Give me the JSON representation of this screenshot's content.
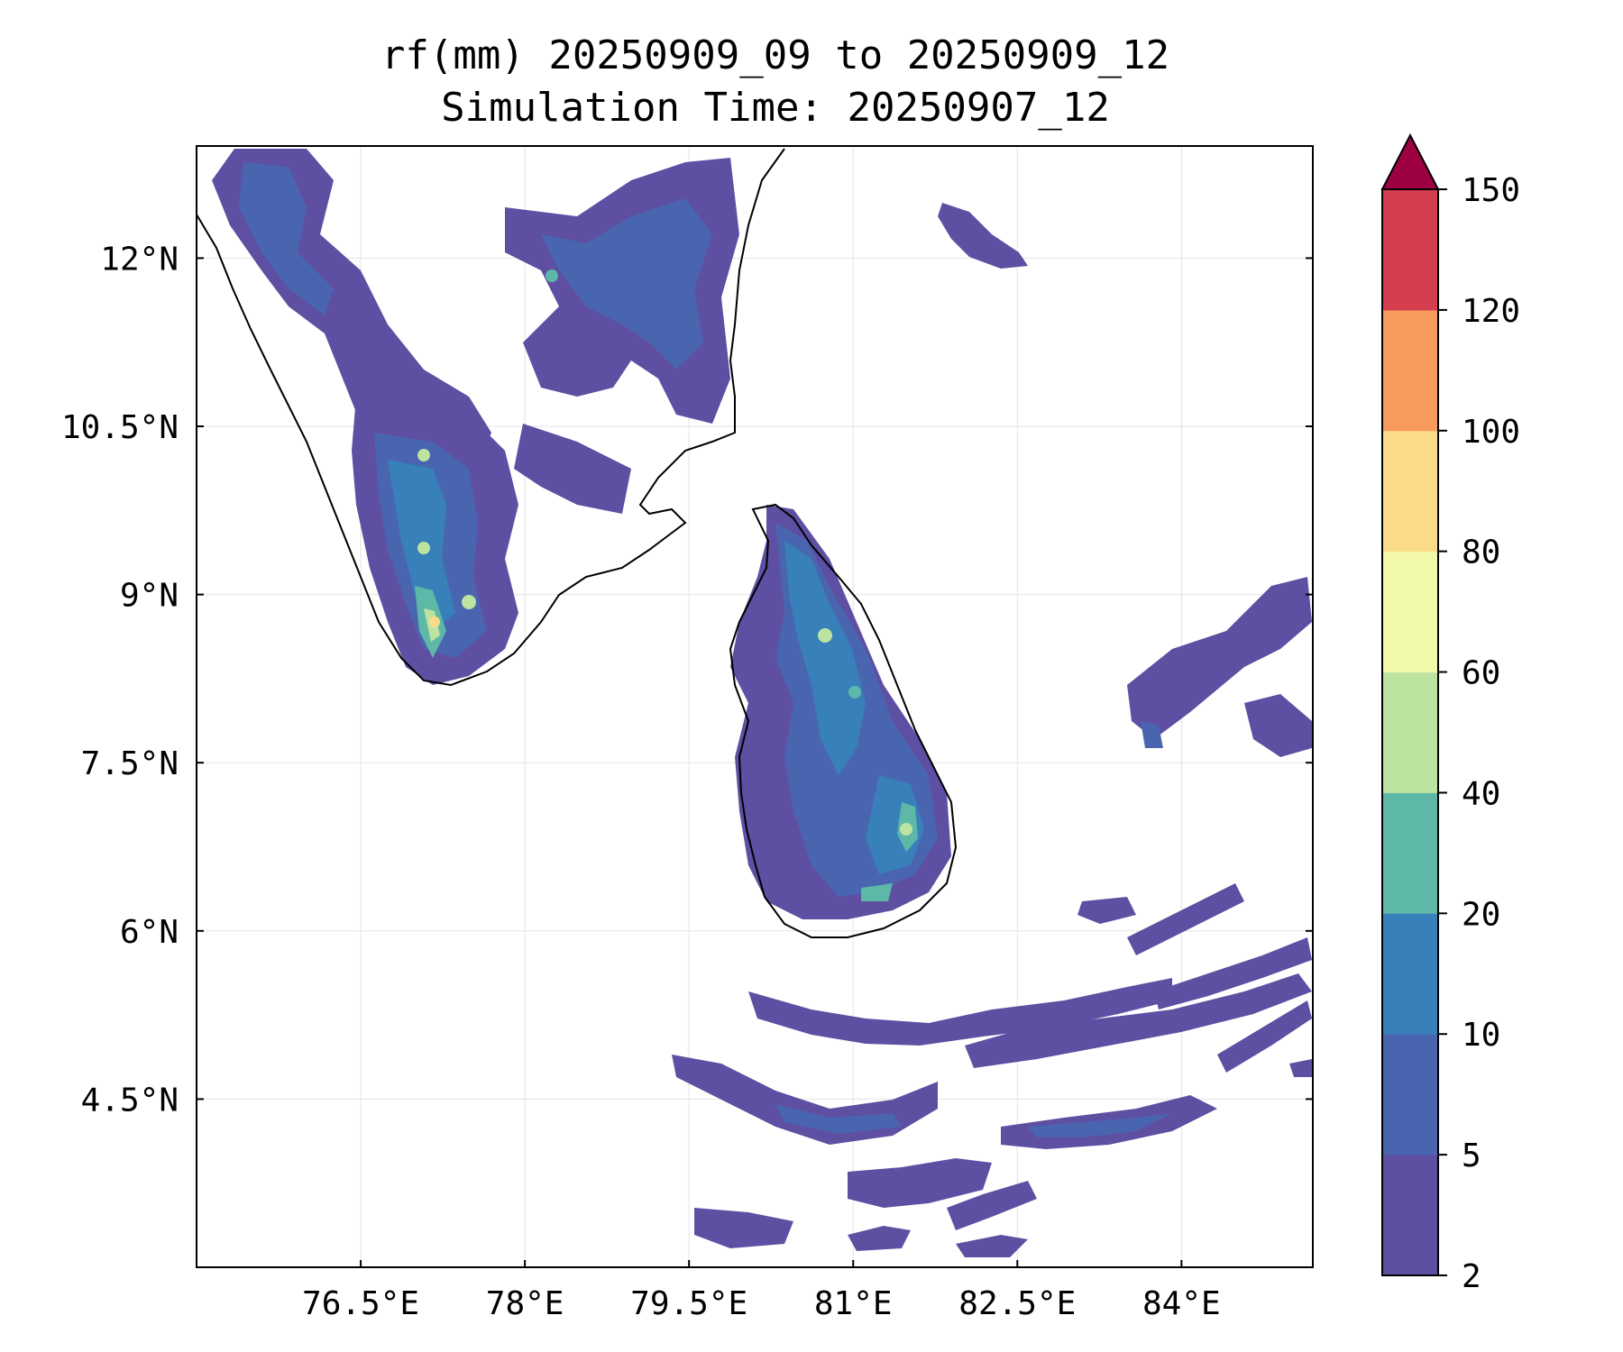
{
  "title": {
    "line1": "rf(mm) 20250909_09 to 20250909_12",
    "line2": "Simulation Time: 20250907_12"
  },
  "map": {
    "lon_range": [
      75.0,
      85.2
    ],
    "lat_range": [
      3.0,
      13.0
    ],
    "grid": true,
    "x_ticks": [
      {
        "value": 76.5,
        "label": "76.5°E"
      },
      {
        "value": 78.0,
        "label": "78°E"
      },
      {
        "value": 79.5,
        "label": "79.5°E"
      },
      {
        "value": 81.0,
        "label": "81°E"
      },
      {
        "value": 82.5,
        "label": "82.5°E"
      },
      {
        "value": 84.0,
        "label": "84°E"
      }
    ],
    "y_ticks": [
      {
        "value": 12.0,
        "label": "12°N"
      },
      {
        "value": 10.5,
        "label": "10.5°N"
      },
      {
        "value": 9.0,
        "label": "9°N"
      },
      {
        "value": 7.5,
        "label": "7.5°N"
      },
      {
        "value": 6.0,
        "label": "6°N"
      },
      {
        "value": 4.5,
        "label": "4.5°N"
      }
    ]
  },
  "colorbar": {
    "levels": [
      {
        "value": 2,
        "label": "2"
      },
      {
        "value": 5,
        "label": "5"
      },
      {
        "value": 10,
        "label": "10"
      },
      {
        "value": 20,
        "label": "20"
      },
      {
        "value": 40,
        "label": "40"
      },
      {
        "value": 60,
        "label": "60"
      },
      {
        "value": 80,
        "label": "80"
      },
      {
        "value": 100,
        "label": "100"
      },
      {
        "value": 120,
        "label": "120"
      },
      {
        "value": 150,
        "label": "150"
      }
    ],
    "colors": [
      "#5e4fa2",
      "#4a65b0",
      "#3880b9",
      "#5db8a8",
      "#bde3a1",
      "#f2f9aa",
      "#fbdb88",
      "#f89a5b",
      "#d53e4f"
    ],
    "extend_color": "#9e0142"
  }
}
